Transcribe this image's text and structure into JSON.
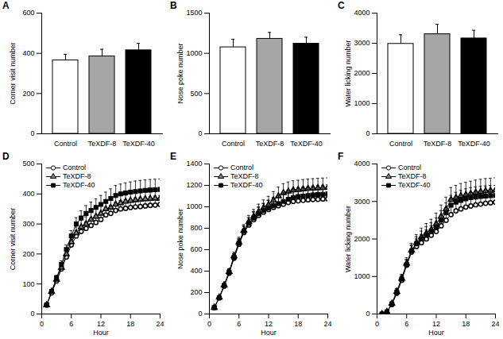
{
  "chart_data": [
    {
      "title": "A",
      "type": "bar",
      "ylabel": "Corner visit number",
      "categories": [
        "Control",
        "TeXDF-8",
        "TeXDF-40"
      ],
      "values": [
        365,
        385,
        415
      ],
      "errors": [
        30,
        35,
        35
      ],
      "colors": [
        "#ffffff",
        "#a6a6a6",
        "#000000"
      ],
      "ylim": [
        0,
        600
      ],
      "yticks": [
        0,
        200,
        400,
        600
      ]
    },
    {
      "title": "B",
      "type": "bar",
      "ylabel": "Nose poke number",
      "categories": [
        "Control",
        "TeXDF-8",
        "TeXDF-40"
      ],
      "values": [
        1075,
        1180,
        1120
      ],
      "errors": [
        100,
        80,
        80
      ],
      "colors": [
        "#ffffff",
        "#a6a6a6",
        "#000000"
      ],
      "ylim": [
        0,
        1500
      ],
      "yticks": [
        0,
        500,
        1000,
        1500
      ]
    },
    {
      "title": "C",
      "type": "bar",
      "ylabel": "Water licking number",
      "categories": [
        "Control",
        "TeXDF-8",
        "TeXDF-40"
      ],
      "values": [
        2980,
        3300,
        3160
      ],
      "errors": [
        300,
        330,
        270
      ],
      "colors": [
        "#ffffff",
        "#a6a6a6",
        "#000000"
      ],
      "ylim": [
        0,
        4000
      ],
      "yticks": [
        0,
        1000,
        2000,
        3000,
        4000
      ]
    },
    {
      "title": "D",
      "type": "line",
      "xlabel": "Hour",
      "ylabel": "Corner visit number",
      "legend": "top-left",
      "x": [
        1,
        2,
        3,
        4,
        5,
        6,
        7,
        8,
        9,
        10,
        11,
        12,
        13,
        14,
        15,
        16,
        17,
        18,
        19,
        20,
        21,
        22,
        23,
        24
      ],
      "xlim": [
        0,
        24
      ],
      "xticks": [
        0,
        6,
        12,
        18,
        24
      ],
      "ylim": [
        0,
        500
      ],
      "yticks": [
        0,
        100,
        200,
        300,
        400,
        500
      ],
      "series": [
        {
          "name": "Control",
          "color": "#ffffff",
          "marker": "circle",
          "values": [
            30,
            70,
            110,
            150,
            190,
            230,
            260,
            275,
            285,
            295,
            305,
            315,
            330,
            335,
            345,
            350,
            352,
            355,
            357,
            358,
            360,
            362,
            363,
            365
          ],
          "errors": [
            3,
            5,
            8,
            10,
            13,
            15,
            18,
            20,
            22,
            23,
            24,
            25,
            26,
            27,
            28,
            28,
            29,
            29,
            30,
            30,
            30,
            30,
            30,
            30
          ]
        },
        {
          "name": "TeXDF-8",
          "color": "#808080",
          "marker": "triangle",
          "values": [
            30,
            75,
            115,
            155,
            200,
            240,
            270,
            290,
            300,
            315,
            325,
            335,
            350,
            355,
            365,
            370,
            375,
            378,
            380,
            382,
            383,
            384,
            385,
            385
          ],
          "errors": [
            3,
            5,
            8,
            11,
            14,
            17,
            20,
            22,
            24,
            26,
            27,
            28,
            29,
            30,
            31,
            31,
            32,
            32,
            33,
            33,
            33,
            33,
            33,
            33
          ]
        },
        {
          "name": "TeXDF-40",
          "color": "#000000",
          "marker": "square",
          "values": [
            30,
            75,
            120,
            165,
            215,
            260,
            300,
            320,
            335,
            345,
            355,
            365,
            375,
            385,
            395,
            400,
            403,
            406,
            408,
            410,
            412,
            413,
            414,
            415
          ],
          "errors": [
            3,
            5,
            9,
            12,
            15,
            18,
            21,
            24,
            26,
            28,
            29,
            30,
            31,
            32,
            33,
            33,
            34,
            34,
            35,
            35,
            35,
            35,
            35,
            35
          ]
        }
      ]
    },
    {
      "title": "E",
      "type": "line",
      "xlabel": "Hour",
      "ylabel": "Nose poke number",
      "legend": "top-left",
      "x": [
        1,
        2,
        3,
        4,
        5,
        6,
        7,
        8,
        9,
        10,
        11,
        12,
        13,
        14,
        15,
        16,
        17,
        18,
        19,
        20,
        21,
        22,
        23,
        24
      ],
      "xlim": [
        0,
        24
      ],
      "xticks": [
        0,
        6,
        12,
        18,
        24
      ],
      "ylim": [
        0,
        1400
      ],
      "yticks": [
        0,
        200,
        400,
        600,
        800,
        1000,
        1200,
        1400
      ],
      "series": [
        {
          "name": "Control",
          "color": "#ffffff",
          "marker": "circle",
          "values": [
            60,
            150,
            260,
            380,
            520,
            650,
            760,
            830,
            880,
            920,
            950,
            975,
            995,
            1010,
            1025,
            1040,
            1050,
            1055,
            1060,
            1065,
            1068,
            1070,
            1073,
            1075
          ],
          "errors": [
            5,
            10,
            20,
            30,
            40,
            50,
            60,
            65,
            70,
            75,
            80,
            85,
            90,
            92,
            94,
            95,
            96,
            97,
            98,
            98,
            99,
            99,
            100,
            100
          ]
        },
        {
          "name": "TeXDF-8",
          "color": "#808080",
          "marker": "triangle",
          "values": [
            60,
            155,
            270,
            395,
            540,
            670,
            780,
            860,
            910,
            955,
            990,
            1020,
            1060,
            1100,
            1130,
            1145,
            1155,
            1160,
            1165,
            1170,
            1173,
            1176,
            1178,
            1180
          ],
          "errors": [
            5,
            10,
            18,
            27,
            36,
            45,
            54,
            60,
            65,
            70,
            74,
            78,
            82,
            84,
            86,
            87,
            88,
            88,
            89,
            89,
            90,
            90,
            90,
            90
          ]
        },
        {
          "name": "TeXDF-40",
          "color": "#000000",
          "marker": "square",
          "values": [
            60,
            150,
            265,
            390,
            530,
            660,
            770,
            845,
            895,
            935,
            965,
            990,
            1010,
            1030,
            1050,
            1070,
            1085,
            1095,
            1100,
            1105,
            1110,
            1114,
            1117,
            1120
          ],
          "errors": [
            5,
            10,
            17,
            25,
            33,
            41,
            49,
            55,
            60,
            64,
            68,
            72,
            75,
            77,
            79,
            80,
            81,
            82,
            83,
            83,
            84,
            84,
            85,
            85
          ]
        }
      ]
    },
    {
      "title": "F",
      "type": "line",
      "xlabel": "Hour",
      "ylabel": "Water licking number",
      "legend": "top-left",
      "x": [
        1,
        2,
        3,
        4,
        5,
        6,
        7,
        8,
        9,
        10,
        11,
        12,
        13,
        14,
        15,
        16,
        17,
        18,
        19,
        20,
        21,
        22,
        23,
        24
      ],
      "xlim": [
        0,
        24
      ],
      "xticks": [
        0,
        6,
        12,
        18,
        24
      ],
      "ylim": [
        0,
        4000
      ],
      "yticks": [
        0,
        1000,
        2000,
        3000,
        4000
      ],
      "series": [
        {
          "name": "Control",
          "color": "#ffffff",
          "marker": "circle",
          "values": [
            0,
            50,
            250,
            550,
            900,
            1300,
            1650,
            1800,
            1900,
            2000,
            2100,
            2200,
            2350,
            2500,
            2650,
            2750,
            2800,
            2850,
            2880,
            2910,
            2930,
            2950,
            2965,
            2980
          ],
          "errors": [
            5,
            15,
            40,
            70,
            100,
            140,
            170,
            200,
            220,
            240,
            255,
            265,
            275,
            285,
            290,
            295,
            298,
            300,
            300,
            300,
            300,
            300,
            300,
            300
          ]
        },
        {
          "name": "TeXDF-8",
          "color": "#808080",
          "marker": "triangle",
          "values": [
            0,
            60,
            280,
            600,
            950,
            1350,
            1700,
            1900,
            2050,
            2150,
            2250,
            2400,
            2600,
            2800,
            3050,
            3100,
            3150,
            3180,
            3210,
            3240,
            3260,
            3280,
            3290,
            3300
          ],
          "errors": [
            5,
            15,
            45,
            80,
            110,
            150,
            185,
            215,
            240,
            260,
            275,
            290,
            305,
            315,
            320,
            325,
            328,
            330,
            330,
            330,
            330,
            330,
            330,
            330
          ]
        },
        {
          "name": "TeXDF-40",
          "color": "#000000",
          "marker": "square",
          "values": [
            0,
            55,
            270,
            580,
            930,
            1320,
            1680,
            1870,
            2000,
            2100,
            2200,
            2320,
            2500,
            2700,
            2900,
            2980,
            3030,
            3070,
            3100,
            3120,
            3135,
            3145,
            3155,
            3160
          ],
          "errors": [
            5,
            15,
            40,
            70,
            100,
            135,
            165,
            190,
            210,
            225,
            235,
            245,
            255,
            260,
            263,
            265,
            267,
            268,
            269,
            270,
            270,
            270,
            270,
            270
          ]
        }
      ]
    }
  ]
}
